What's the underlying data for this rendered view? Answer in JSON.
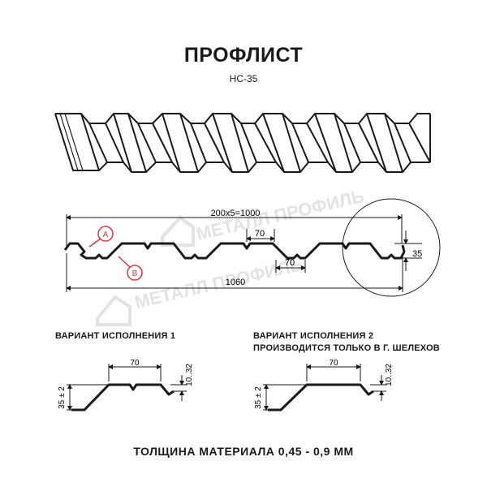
{
  "header": {
    "title": "ПРОФЛИСТ",
    "subtitle": "НС-35"
  },
  "watermark": {
    "text": "МЕТАЛЛ ПРОФИЛЬ"
  },
  "profile": {
    "top_dim": "200x5=1000",
    "bottom_dim": "1060",
    "upper_width": "70",
    "lower_width": "70",
    "height": "35",
    "marker_a": "A",
    "marker_b": "B"
  },
  "variant1": {
    "title": "ВАРИАНТ ИСПОЛНЕНИЯ 1",
    "width": "70",
    "height": "35 ± 2",
    "rib": "10..32"
  },
  "variant2": {
    "title_line1": "ВАРИАНТ ИСПОЛНЕНИЯ 2",
    "title_line2": "ПРОИЗВОДИТСЯ ТОЛЬКО В Г. ШЕЛЕХОВ",
    "width": "70",
    "height": "35 ± 2",
    "rib": "10..32"
  },
  "footer": {
    "thickness": "ТОЛЩИНА МАТЕРИАЛА 0,45 - 0,9 ММ"
  },
  "colors": {
    "marker": "#d9363e",
    "line": "#1a1a1a",
    "watermark": "#e3e3e3"
  }
}
